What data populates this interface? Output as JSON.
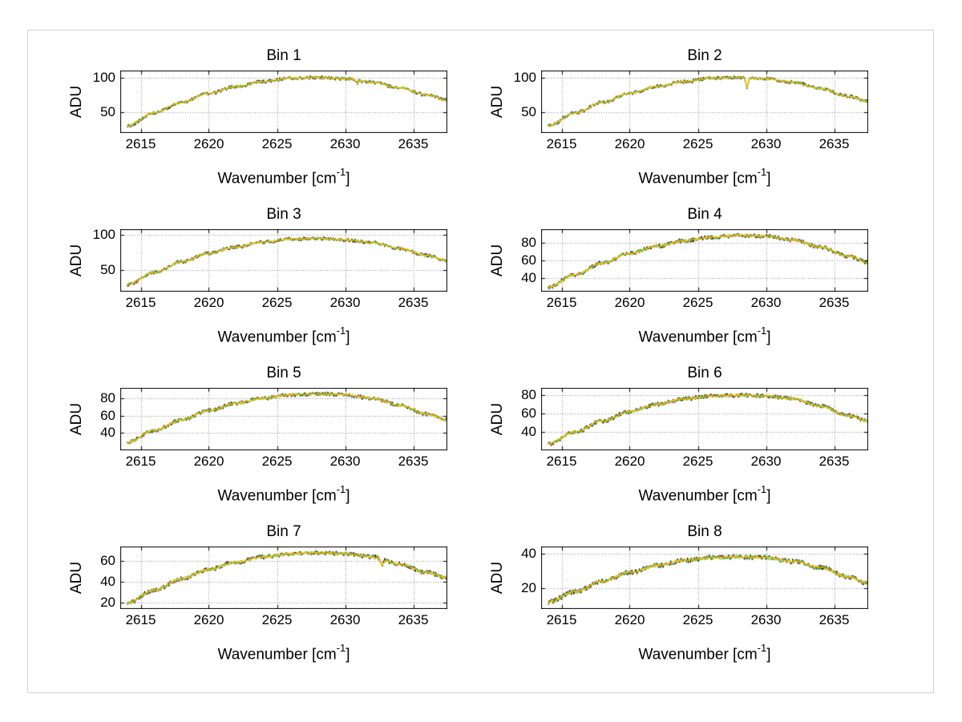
{
  "figure": {
    "background": "#ffffff",
    "frame_color": "#d2d2d2",
    "axis_color": "#000000",
    "grid_color": "#8c8c8c",
    "xlim": [
      2613.5,
      2637.5
    ],
    "xticks": [
      2615,
      2620,
      2625,
      2630,
      2635
    ],
    "series": [
      {
        "name": "spectrum-trace-black",
        "color": "#000000",
        "noise_scale": 2.2,
        "seed": 11
      },
      {
        "name": "spectrum-trace-green",
        "color": "#2db82d",
        "noise_scale": 1.6,
        "seed": 23
      },
      {
        "name": "spectrum-trace-orange",
        "color": "#ff9900",
        "noise_scale": 1.1,
        "seed": 37
      },
      {
        "name": "spectrum-trace-yellow",
        "color": "#ffd400",
        "noise_scale": 0.85,
        "seed": 51
      }
    ]
  },
  "chart_data": [
    {
      "type": "line",
      "title": "Bin 1",
      "ylabel": "ADU",
      "xlabel": {
        "base": "Wavenumber [cm",
        "sup": "-1",
        "end": "]"
      },
      "xlim": [
        2613.5,
        2637.5
      ],
      "xticks": [
        2615,
        2620,
        2625,
        2630,
        2635
      ],
      "yticks": [
        50,
        100
      ],
      "ylim": [
        20,
        110
      ],
      "envelope": {
        "x": [
          2614,
          2616,
          2618,
          2620,
          2622,
          2624,
          2626,
          2628,
          2630,
          2632,
          2634,
          2636,
          2637.5
        ],
        "y": [
          30,
          49,
          64,
          77,
          87,
          94,
          99,
          100,
          98,
          93,
          85,
          75,
          67
        ]
      },
      "noise": 1.3,
      "spikes": [
        {
          "x": 2630.9,
          "dy": -5,
          "w": 0.15
        }
      ]
    },
    {
      "type": "line",
      "title": "Bin 2",
      "ylabel": "ADU",
      "xlabel": {
        "base": "Wavenumber [cm",
        "sup": "-1",
        "end": "]"
      },
      "xlim": [
        2613.5,
        2637.5
      ],
      "xticks": [
        2615,
        2620,
        2625,
        2630,
        2635
      ],
      "yticks": [
        50,
        100
      ],
      "ylim": [
        20,
        110
      ],
      "envelope": {
        "x": [
          2614,
          2616,
          2618,
          2620,
          2622,
          2624,
          2626,
          2628,
          2630,
          2632,
          2634,
          2636,
          2637.5
        ],
        "y": [
          30,
          49,
          64,
          77,
          87,
          94,
          99,
          100,
          98,
          93,
          84,
          73,
          66
        ]
      },
      "noise": 1.3,
      "spikes": [
        {
          "x": 2628.6,
          "dy": -14,
          "w": 0.18
        }
      ]
    },
    {
      "type": "line",
      "title": "Bin 3",
      "ylabel": "ADU",
      "xlabel": {
        "base": "Wavenumber [cm",
        "sup": "-1",
        "end": "]"
      },
      "xlim": [
        2613.5,
        2637.5
      ],
      "xticks": [
        2615,
        2620,
        2625,
        2630,
        2635
      ],
      "yticks": [
        50,
        100
      ],
      "ylim": [
        20,
        108
      ],
      "envelope": {
        "x": [
          2614,
          2616,
          2618,
          2620,
          2622,
          2624,
          2626,
          2628,
          2630,
          2632,
          2634,
          2636,
          2637.5
        ],
        "y": [
          30,
          47,
          62,
          74,
          83,
          90,
          94,
          95,
          93,
          89,
          81,
          71,
          64
        ]
      },
      "noise": 1.3,
      "spikes": []
    },
    {
      "type": "line",
      "title": "Bin 4",
      "ylabel": "ADU",
      "xlabel": {
        "base": "Wavenumber [cm",
        "sup": "-1",
        "end": "]"
      },
      "xlim": [
        2613.5,
        2637.5
      ],
      "xticks": [
        2615,
        2620,
        2625,
        2630,
        2635
      ],
      "yticks": [
        40,
        60,
        80
      ],
      "ylim": [
        25,
        95
      ],
      "envelope": {
        "x": [
          2614,
          2616,
          2618,
          2620,
          2622,
          2624,
          2626,
          2628,
          2630,
          2632,
          2634,
          2636,
          2637.5
        ],
        "y": [
          30,
          44,
          57,
          68,
          76,
          82,
          86,
          88,
          87,
          83,
          75,
          65,
          58
        ]
      },
      "noise": 1.2,
      "spikes": []
    },
    {
      "type": "line",
      "title": "Bin 5",
      "ylabel": "ADU",
      "xlabel": {
        "base": "Wavenumber [cm",
        "sup": "-1",
        "end": "]"
      },
      "xlim": [
        2613.5,
        2637.5
      ],
      "xticks": [
        2615,
        2620,
        2625,
        2630,
        2635
      ],
      "yticks": [
        40,
        60,
        80
      ],
      "ylim": [
        20,
        92
      ],
      "envelope": {
        "x": [
          2614,
          2616,
          2618,
          2620,
          2622,
          2624,
          2626,
          2628,
          2630,
          2632,
          2634,
          2636,
          2637.5
        ],
        "y": [
          29,
          43,
          55,
          66,
          74,
          80,
          84,
          85,
          84,
          80,
          72,
          62,
          55
        ]
      },
      "noise": 1.2,
      "spikes": []
    },
    {
      "type": "line",
      "title": "Bin 6",
      "ylabel": "ADU",
      "xlabel": {
        "base": "Wavenumber [cm",
        "sup": "-1",
        "end": "]"
      },
      "xlim": [
        2613.5,
        2637.5
      ],
      "xticks": [
        2615,
        2620,
        2625,
        2630,
        2635
      ],
      "yticks": [
        40,
        60,
        80
      ],
      "ylim": [
        20,
        88
      ],
      "envelope": {
        "x": [
          2614,
          2616,
          2618,
          2620,
          2622,
          2624,
          2626,
          2628,
          2630,
          2632,
          2634,
          2636,
          2637.5
        ],
        "y": [
          27,
          40,
          52,
          62,
          70,
          76,
          79,
          80,
          79,
          76,
          68,
          58,
          52
        ]
      },
      "noise": 1.2,
      "spikes": []
    },
    {
      "type": "line",
      "title": "Bin 7",
      "ylabel": "ADU",
      "xlabel": {
        "base": "Wavenumber [cm",
        "sup": "-1",
        "end": "]"
      },
      "xlim": [
        2613.5,
        2637.5
      ],
      "xticks": [
        2615,
        2620,
        2625,
        2630,
        2635
      ],
      "yticks": [
        20,
        40,
        60
      ],
      "ylim": [
        14,
        74
      ],
      "envelope": {
        "x": [
          2614,
          2616,
          2618,
          2620,
          2622,
          2624,
          2626,
          2628,
          2630,
          2632,
          2634,
          2636,
          2637.5
        ],
        "y": [
          20,
          32,
          43,
          52,
          59,
          64,
          67,
          68,
          67,
          64,
          57,
          49,
          44
        ]
      },
      "noise": 1.1,
      "spikes": [
        {
          "x": 2632.7,
          "dy": -7,
          "w": 0.2
        }
      ]
    },
    {
      "type": "line",
      "title": "Bin 8",
      "ylabel": "ADU",
      "xlabel": {
        "base": "Wavenumber [cm",
        "sup": "-1",
        "end": "]"
      },
      "xlim": [
        2613.5,
        2637.5
      ],
      "xticks": [
        2615,
        2620,
        2625,
        2630,
        2635
      ],
      "yticks": [
        20,
        40
      ],
      "ylim": [
        8,
        44
      ],
      "envelope": {
        "x": [
          2614,
          2616,
          2618,
          2620,
          2622,
          2624,
          2626,
          2628,
          2630,
          2632,
          2634,
          2636,
          2637.5
        ],
        "y": [
          12,
          18,
          24,
          29,
          33,
          36,
          37.5,
          38,
          37.5,
          35.5,
          32,
          26.5,
          23
        ]
      },
      "noise": 0.7,
      "spikes": []
    }
  ]
}
